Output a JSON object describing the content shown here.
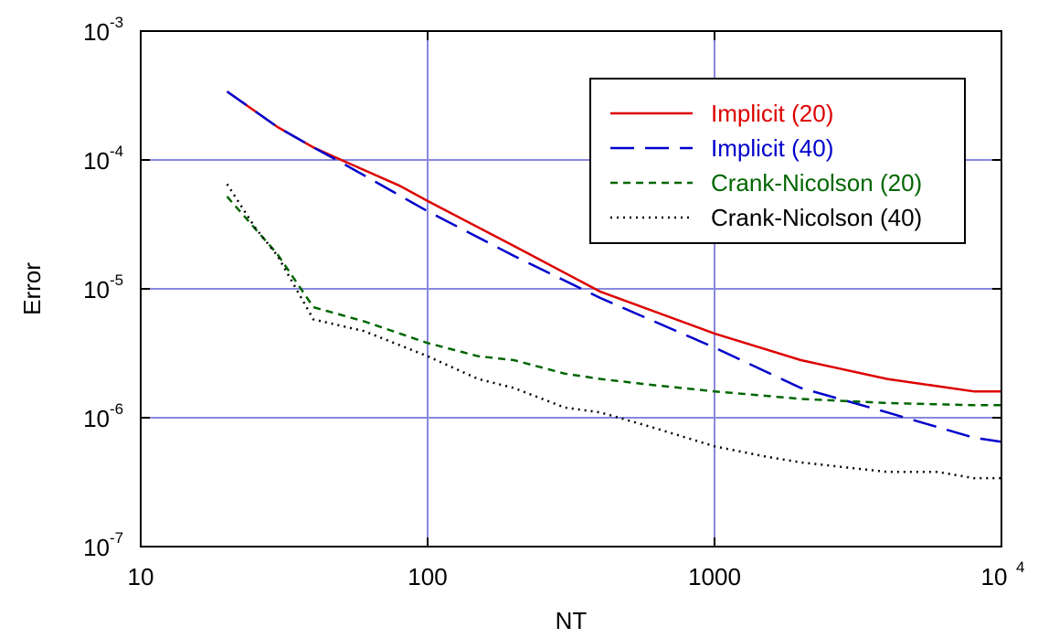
{
  "chart_data": {
    "type": "line",
    "xlabel": "NT",
    "ylabel": "Error",
    "xscale": "log",
    "yscale": "log",
    "xlim": [
      10,
      10000
    ],
    "ylim": [
      1e-07,
      0.001
    ],
    "grid": true,
    "legend_position": "top-right",
    "x_ticks": [
      {
        "value": 10,
        "label": "10",
        "exp": ""
      },
      {
        "value": 100,
        "label": "100",
        "exp": ""
      },
      {
        "value": 1000,
        "label": "1000",
        "exp": ""
      },
      {
        "value": 10000,
        "label": "10",
        "exp": "4"
      }
    ],
    "y_ticks": [
      {
        "value": 1e-07,
        "label": "10",
        "exp": "-7"
      },
      {
        "value": 1e-06,
        "label": "10",
        "exp": "-6"
      },
      {
        "value": 1e-05,
        "label": "10",
        "exp": "-5"
      },
      {
        "value": 0.0001,
        "label": "10",
        "exp": "-4"
      },
      {
        "value": 0.001,
        "label": "10",
        "exp": "-3"
      }
    ],
    "series": [
      {
        "name": "Implicit (20)",
        "color": "#dd0000",
        "dash": "solid",
        "x": [
          20,
          30,
          40,
          50,
          80,
          100,
          200,
          400,
          1000,
          2000,
          4000,
          8000,
          10000
        ],
        "y": [
          0.00034,
          0.00018,
          0.000125,
          0.0001,
          6.3e-05,
          4.8e-05,
          2.15e-05,
          9.5e-06,
          4.5e-06,
          2.8e-06,
          2e-06,
          1.6e-06,
          1.6e-06
        ]
      },
      {
        "name": "Implicit (40)",
        "color": "#0000cc",
        "dash": "long-dash",
        "x": [
          20,
          30,
          40,
          50,
          100,
          200,
          400,
          1000,
          2000,
          4000,
          8000,
          10000
        ],
        "y": [
          0.00034,
          0.00018,
          0.000125,
          9.55e-05,
          4e-05,
          1.8e-05,
          8.5e-06,
          3.5e-06,
          1.7e-06,
          1.1e-06,
          7e-07,
          6.5e-07
        ]
      },
      {
        "name": "Crank-Nicolson (20)",
        "color": "#006600",
        "dash": "short-dash",
        "x": [
          20,
          30,
          40,
          60,
          100,
          150,
          200,
          300,
          400,
          600,
          1000,
          2000,
          4000,
          8000,
          10000
        ],
        "y": [
          5.2e-05,
          1.85e-05,
          7.2e-06,
          5.6e-06,
          3.8e-06,
          3e-06,
          2.8e-06,
          2.2e-06,
          2e-06,
          1.8e-06,
          1.6e-06,
          1.4e-06,
          1.3e-06,
          1.25e-06,
          1.25e-06
        ]
      },
      {
        "name": "Crank-Nicolson (40)",
        "color": "#000000",
        "dash": "dotted",
        "x": [
          20,
          25,
          30,
          40,
          60,
          100,
          150,
          200,
          300,
          400,
          600,
          1000,
          1500,
          2000,
          4000,
          6000,
          8000,
          10000
        ],
        "y": [
          6.5e-05,
          3e-05,
          1.8e-05,
          5.8e-06,
          4.7e-06,
          3e-06,
          2e-06,
          1.7e-06,
          1.2e-06,
          1.1e-06,
          8.5e-07,
          6e-07,
          5e-07,
          4.5e-07,
          3.8e-07,
          3.8e-07,
          3.4e-07,
          3.4e-07
        ]
      }
    ]
  }
}
